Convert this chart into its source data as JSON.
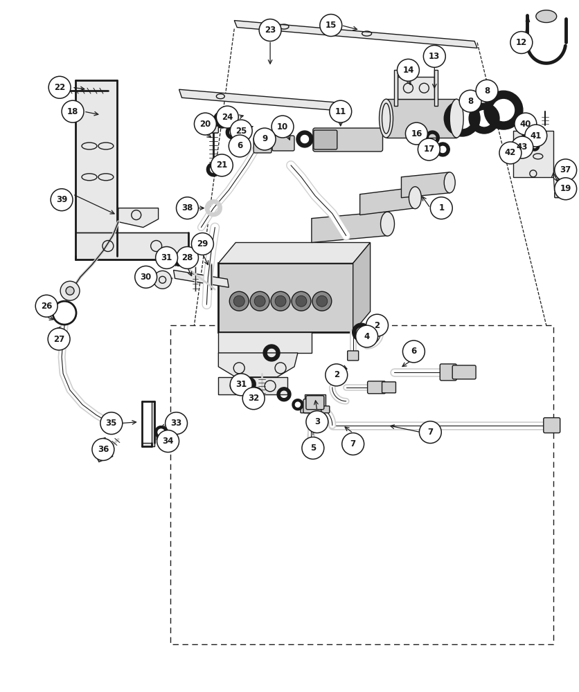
{
  "bg_color": "#ffffff",
  "fig_width": 8.36,
  "fig_height": 10.0,
  "dpi": 100,
  "lc": "#1a1a1a",
  "lw": 1.0,
  "lw_thick": 2.0,
  "circle_r": 0.018,
  "font_size": 8.5
}
